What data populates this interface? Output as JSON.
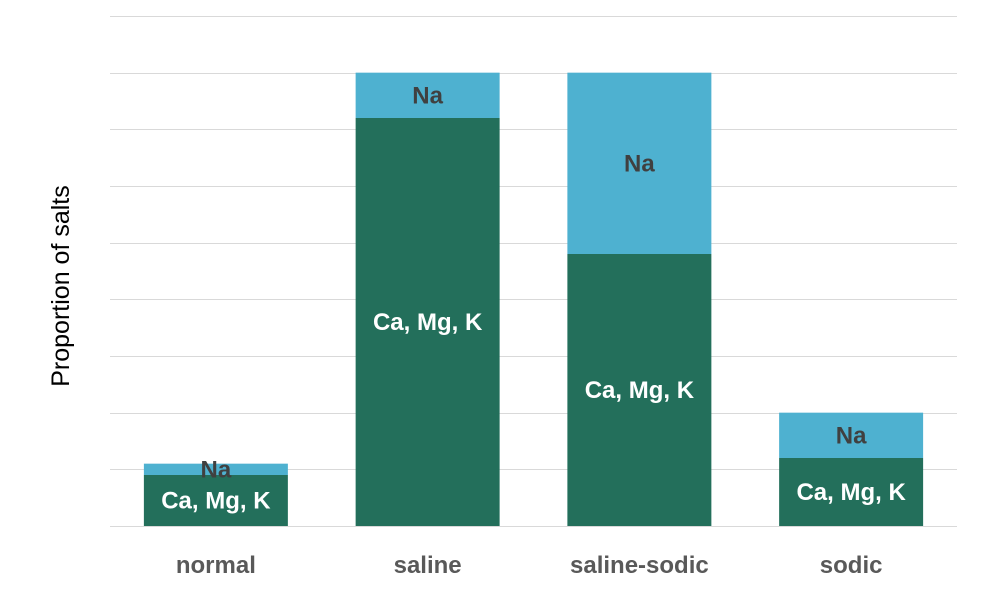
{
  "chart_data": {
    "type": "bar",
    "stacked": true,
    "categories": [
      "normal",
      "saline",
      "saline-sodic",
      "sodic"
    ],
    "series": [
      {
        "name": "Ca, Mg, K",
        "values": [
          0.9,
          7.2,
          4.8,
          1.2
        ],
        "color": "#236f5b",
        "label_color": "#ffffff"
      },
      {
        "name": "Na",
        "values": [
          0.2,
          0.8,
          3.2,
          0.8
        ],
        "color": "#4eb1d0",
        "label_color": "#404040"
      }
    ],
    "title": "",
    "xlabel": "",
    "ylabel": "Proportion of salts",
    "ylim": [
      0,
      9
    ],
    "y_gridlines": [
      0,
      1,
      2,
      3,
      4,
      5,
      6,
      7,
      8,
      9
    ],
    "y_tick_labels_shown": false,
    "grid": true,
    "legend": "none",
    "data_labels": "series name"
  }
}
